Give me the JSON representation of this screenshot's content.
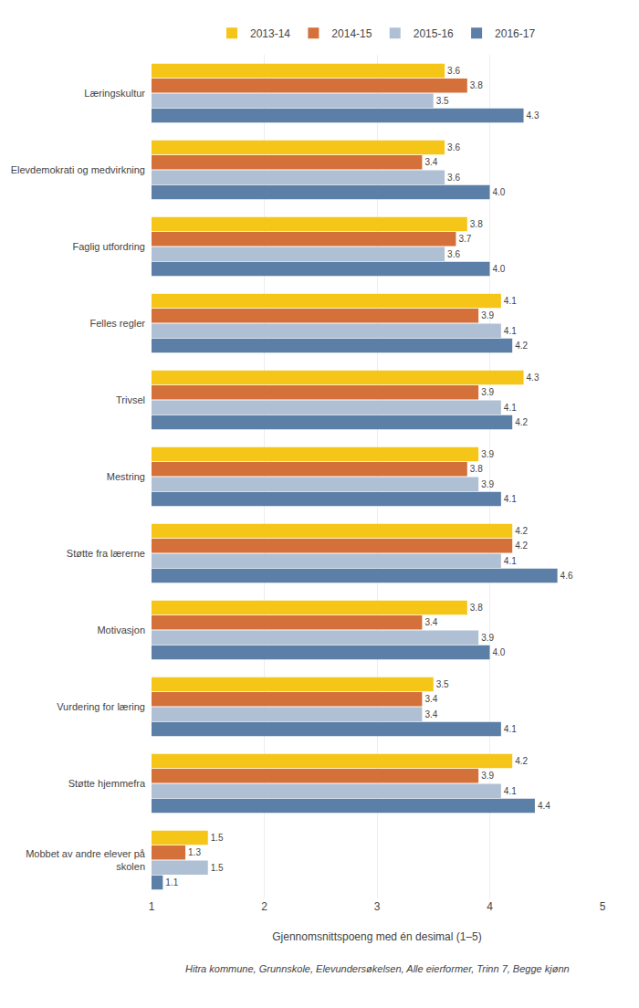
{
  "chart_data": {
    "type": "bar",
    "orientation": "horizontal",
    "categories": [
      "Læringskultur",
      "Elevdemokrati og medvirkning",
      "Faglig utfordring",
      "Felles regler",
      "Trivsel",
      "Mestring",
      "Støtte fra lærerne",
      "Motivasjon",
      "Vurdering for læring",
      "Støtte hjemmefra",
      "Mobbet av andre elever på\nskolen"
    ],
    "series": [
      {
        "name": "2013-14",
        "color": "#F5C518",
        "values": [
          3.6,
          3.6,
          3.8,
          4.1,
          4.3,
          3.9,
          4.2,
          3.8,
          3.5,
          4.2,
          1.5
        ],
        "value_labels": [
          "3.6",
          "3.6",
          "3.8",
          "4.1",
          "4.3",
          "3.9",
          "4.2",
          "3.8",
          "3.5",
          "4.2",
          "1.5"
        ]
      },
      {
        "name": "2014-15",
        "color": "#D4703A",
        "values": [
          3.8,
          3.4,
          3.7,
          3.9,
          3.9,
          3.8,
          4.2,
          3.4,
          3.4,
          3.9,
          1.3
        ],
        "value_labels": [
          "3.8",
          "3.4",
          "3.7",
          "3.9",
          "3.9",
          "3.8",
          "4.2",
          "3.4",
          "3.4",
          "3.9",
          "1.3"
        ]
      },
      {
        "name": "2015-16",
        "color": "#B0C0D4",
        "values": [
          3.5,
          3.6,
          3.6,
          4.1,
          4.1,
          3.9,
          4.1,
          3.9,
          3.4,
          4.1,
          1.5
        ],
        "value_labels": [
          "3.5",
          "3.6",
          "3.6",
          "4.1",
          "4.1",
          "3.9",
          "4.1",
          "3.9",
          "3.4",
          "4.1",
          "1.5"
        ]
      },
      {
        "name": "2016-17",
        "color": "#5B7FA6",
        "values": [
          4.3,
          4.0,
          4.0,
          4.2,
          4.2,
          4.1,
          4.6,
          4.0,
          4.1,
          4.4,
          1.1
        ],
        "value_labels": [
          "4.3",
          "4.0",
          "4.0",
          "4.2",
          "4.2",
          "4.1",
          "4.6",
          "4.0",
          "4.1",
          "4.4",
          "1.1"
        ]
      }
    ],
    "xlabel": "Gjennomsnittspoeng med én desimal (1–5)",
    "xlim": [
      1,
      5
    ],
    "xticks": [
      1,
      2,
      3,
      4,
      5
    ],
    "grid": true,
    "data_labels": true,
    "legend": "top",
    "annotations": [
      "Hitra kommune, Grunnskole, Elevundersøkelsen, Alle eierformer, Trinn 7, Begge kjønn"
    ]
  }
}
